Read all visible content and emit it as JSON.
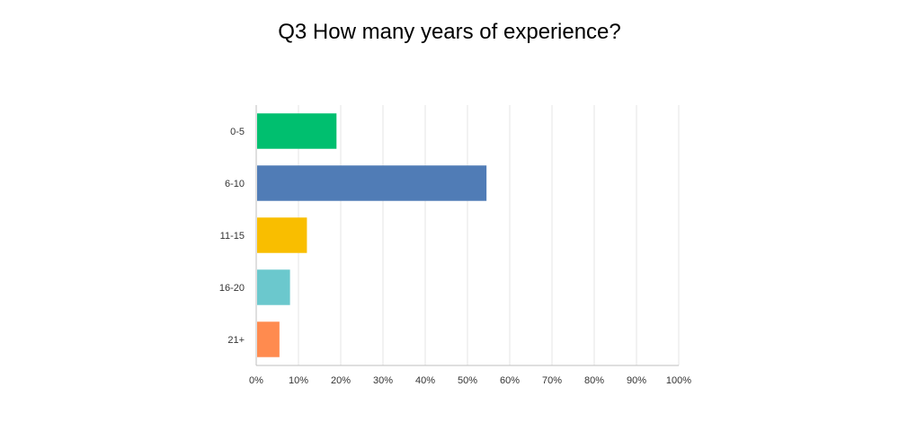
{
  "chart_data": {
    "type": "bar",
    "orientation": "horizontal",
    "title": "Q3 How many years of experience?",
    "categories": [
      "0-5",
      "6-10",
      "11-15",
      "16-20",
      "21+"
    ],
    "values": [
      19.0,
      54.5,
      12.0,
      8.0,
      5.5
    ],
    "colors": [
      "#00bf6f",
      "#507cb6",
      "#f9be00",
      "#6bc8cd",
      "#ff8b4f"
    ],
    "x_ticks": [
      "0%",
      "10%",
      "20%",
      "30%",
      "40%",
      "50%",
      "60%",
      "70%",
      "80%",
      "90%",
      "100%"
    ],
    "xlim": [
      0,
      100
    ],
    "grid": true,
    "legend": "none"
  }
}
